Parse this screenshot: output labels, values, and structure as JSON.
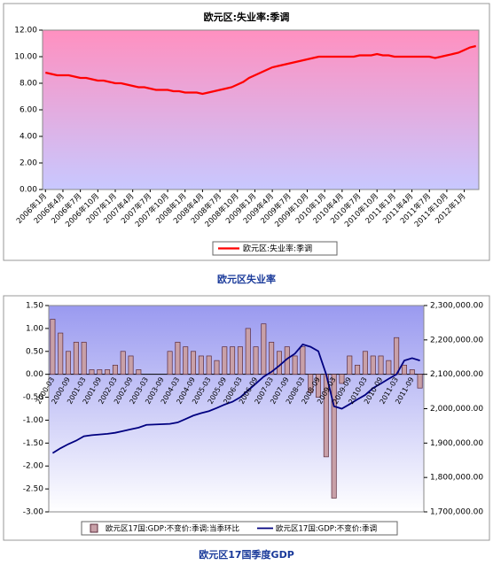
{
  "chart_data": [
    {
      "type": "line",
      "title": "欧元区:失业率:季调",
      "caption": "欧元区失业率",
      "categories": [
        "2006年1月",
        null,
        null,
        "2006年4月",
        null,
        null,
        "2006年7月",
        null,
        null,
        "2006年10月",
        null,
        null,
        "2007年1月",
        null,
        null,
        "2007年4月",
        null,
        null,
        "2007年7月",
        null,
        null,
        "2007年10月",
        null,
        null,
        "2008年1月",
        null,
        null,
        "2008年4月",
        null,
        null,
        "2008年7月",
        null,
        null,
        "2008年10月",
        null,
        null,
        "2009年1月",
        null,
        null,
        "2009年4月",
        null,
        null,
        "2009年7月",
        null,
        null,
        "2009年10月",
        null,
        null,
        "2010年1月",
        null,
        null,
        "2010年4月",
        null,
        null,
        "2010年7月",
        null,
        null,
        "2010年10月",
        null,
        null,
        "2011年1月",
        null,
        null,
        "2011年4月",
        null,
        null,
        "2011年7月",
        null,
        null,
        "2011年10月",
        null,
        null,
        "2012年1月",
        null,
        null
      ],
      "series": [
        {
          "name": "欧元区:失业率:季调",
          "color": "#ff0000",
          "values": [
            8.8,
            8.7,
            8.6,
            8.6,
            8.6,
            8.5,
            8.4,
            8.4,
            8.3,
            8.2,
            8.2,
            8.1,
            8.0,
            8.0,
            7.9,
            7.8,
            7.7,
            7.7,
            7.6,
            7.5,
            7.5,
            7.5,
            7.4,
            7.4,
            7.3,
            7.3,
            7.3,
            7.2,
            7.3,
            7.4,
            7.5,
            7.6,
            7.7,
            7.9,
            8.1,
            8.4,
            8.6,
            8.8,
            9.0,
            9.2,
            9.3,
            9.4,
            9.5,
            9.6,
            9.7,
            9.8,
            9.9,
            10.0,
            10.0,
            10.0,
            10.0,
            10.0,
            10.0,
            10.0,
            10.1,
            10.1,
            10.1,
            10.2,
            10.1,
            10.1,
            10.0,
            10.0,
            10.0,
            10.0,
            10.0,
            10.0,
            10.0,
            9.9,
            10.0,
            10.1,
            10.2,
            10.3,
            10.5,
            10.7,
            10.8
          ]
        }
      ],
      "ylim": [
        0,
        12
      ],
      "yticks": [
        {
          "value": 0,
          "label": "0.00"
        },
        {
          "value": 2,
          "label": "2.00"
        },
        {
          "value": 4,
          "label": "4.00"
        },
        {
          "value": 6,
          "label": "6.00"
        },
        {
          "value": 8,
          "label": "8.00"
        },
        {
          "value": 10,
          "label": "10.00"
        },
        {
          "value": 12,
          "label": "12.00"
        }
      ],
      "legend": "bottom"
    },
    {
      "type": "bar-line",
      "caption": "欧元区17国季度GDP",
      "categories": [
        "2000-03",
        null,
        "2000-09",
        null,
        "2001-03",
        null,
        "2001-09",
        null,
        "2002-03",
        null,
        "2002-09",
        null,
        "2003-03",
        null,
        "2003-09",
        null,
        "2004-03",
        null,
        "2004-09",
        null,
        "2005-03",
        null,
        "2005-09",
        null,
        "2006-03",
        null,
        "2006-09",
        null,
        "2007-03",
        null,
        "2007-09",
        null,
        "2008-03",
        null,
        "2008-09",
        null,
        "2009-03",
        null,
        "2009-09",
        null,
        "2010-03",
        null,
        "2010-09",
        null,
        "2011-03",
        null,
        "2011-09",
        null
      ],
      "series": [
        {
          "name": "欧元区17国:GDP:不变价:季调:当季环比",
          "color": "#c8a0a8",
          "values": [
            1.2,
            0.9,
            0.5,
            0.7,
            0.7,
            0.1,
            0.1,
            0.1,
            0.2,
            0.5,
            0.4,
            0.1,
            0.0,
            0.0,
            0.0,
            0.5,
            0.7,
            0.6,
            0.5,
            0.4,
            0.4,
            0.3,
            0.6,
            0.6,
            0.6,
            1.0,
            0.6,
            1.1,
            0.7,
            0.5,
            0.6,
            0.4,
            0.6,
            -0.4,
            -0.5,
            -1.8,
            -2.7,
            -0.2,
            0.4,
            0.2,
            0.5,
            0.4,
            0.4,
            0.3,
            0.8,
            0.2,
            0.1,
            -0.3
          ]
        },
        {
          "name": "欧元区17国:GDP:不变价:季调",
          "color": "#000080",
          "axis": "y2",
          "values": [
            1871000,
            1885000,
            1897000,
            1907000,
            1920000,
            1923000,
            1925000,
            1927000,
            1930000,
            1935000,
            1940000,
            1945000,
            1953000,
            1954000,
            1955000,
            1956000,
            1960000,
            1970000,
            1980000,
            1987000,
            1993000,
            2002000,
            2012000,
            2020000,
            2033000,
            2053000,
            2073000,
            2093000,
            2107000,
            2125000,
            2145000,
            2160000,
            2187000,
            2180000,
            2167000,
            2100000,
            2007000,
            2000000,
            2013000,
            2027000,
            2040000,
            2060000,
            2073000,
            2087000,
            2100000,
            2140000,
            2147000,
            2140000
          ]
        }
      ],
      "ylim": [
        -3,
        1.5
      ],
      "yticks": [
        {
          "value": -3,
          "label": "-3.00"
        },
        {
          "value": -2.5,
          "label": "-2.50"
        },
        {
          "value": -2,
          "label": "-2.00"
        },
        {
          "value": -1.5,
          "label": "-1.50"
        },
        {
          "value": -1,
          "label": "-1.00"
        },
        {
          "value": -0.5,
          "label": "-0.50"
        },
        {
          "value": 0,
          "label": "0.00"
        },
        {
          "value": 0.5,
          "label": "0.50"
        },
        {
          "value": 1,
          "label": "1.00"
        },
        {
          "value": 1.5,
          "label": "1.50"
        }
      ],
      "y2lim": [
        1700000,
        2300000
      ],
      "y2ticks": [
        {
          "value": 1700000,
          "label": "1,700,000.00"
        },
        {
          "value": 1800000,
          "label": "1,800,000.00"
        },
        {
          "value": 1900000,
          "label": "1,900,000.00"
        },
        {
          "value": 2000000,
          "label": "2,000,000.00"
        },
        {
          "value": 2100000,
          "label": "2,100,000.00"
        },
        {
          "value": 2200000,
          "label": "2,200,000.00"
        },
        {
          "value": 2300000,
          "label": "2,300,000.00"
        }
      ],
      "legend": "bottom"
    }
  ]
}
